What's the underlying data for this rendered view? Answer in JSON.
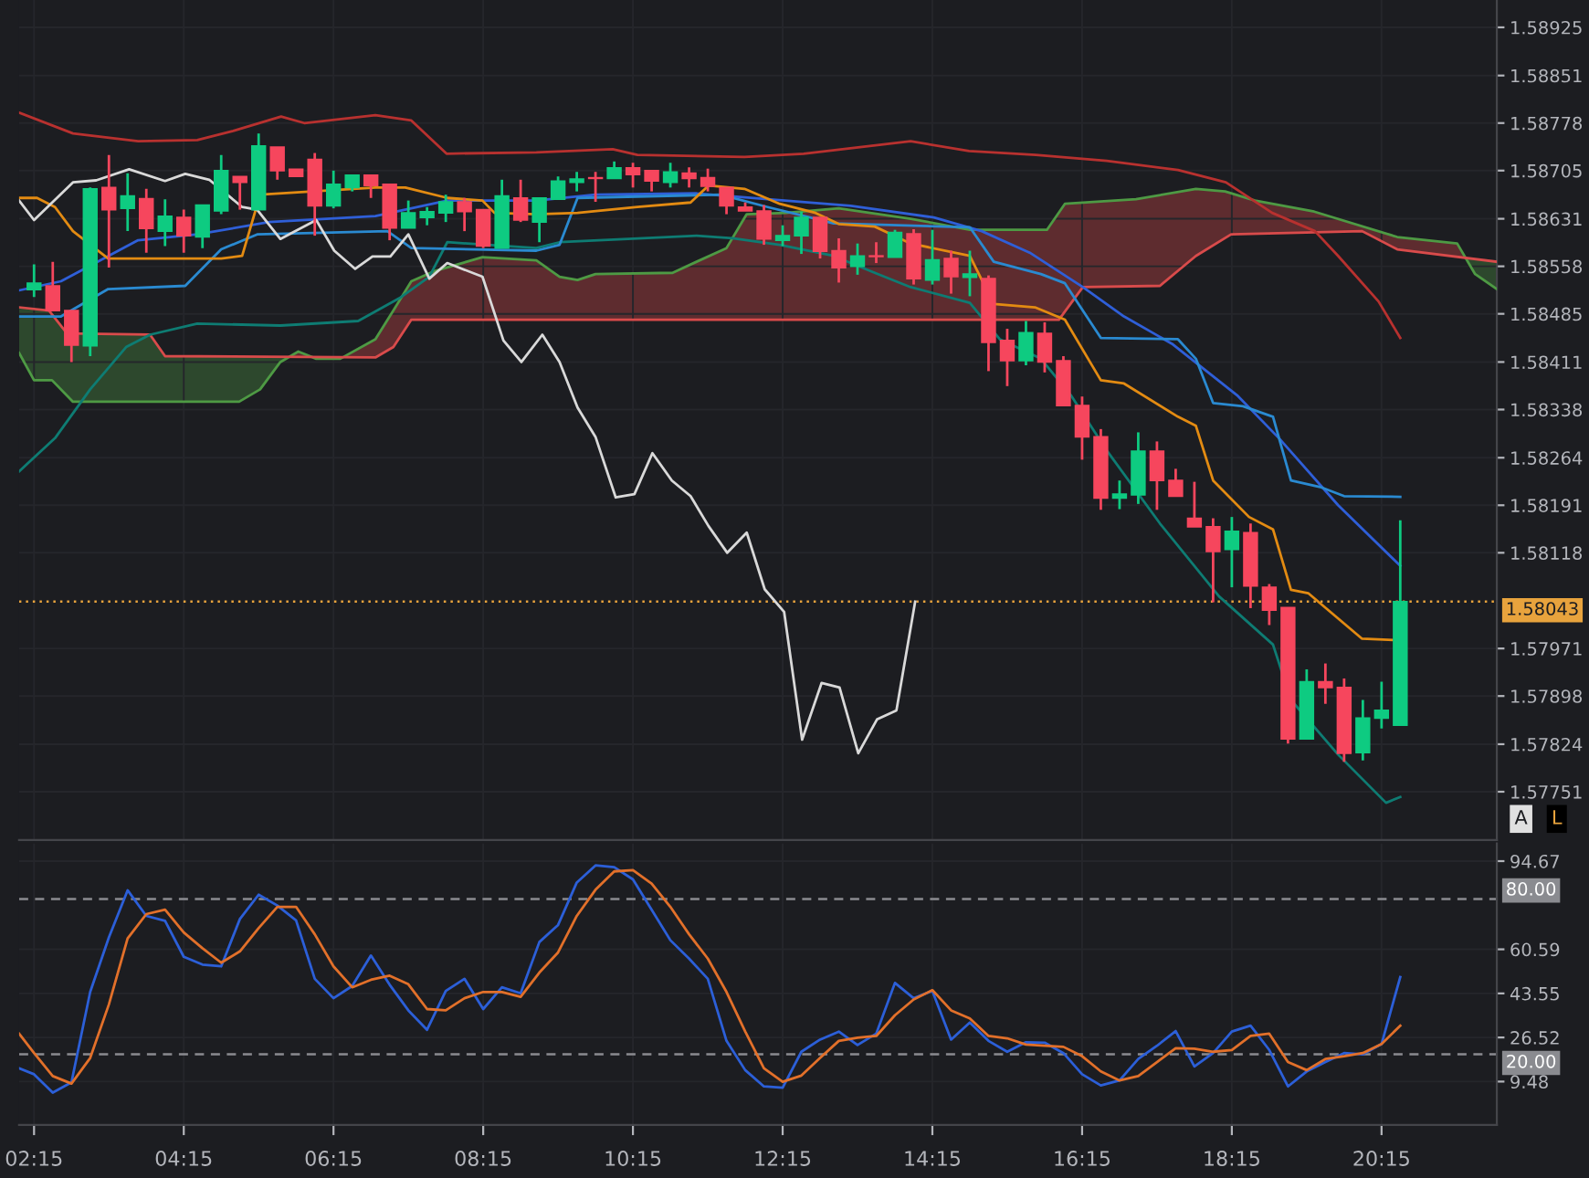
{
  "chart_data": [
    {
      "type": "candlestick",
      "x": [
        2.25,
        2.5,
        2.75,
        3.0,
        3.25,
        3.5,
        3.75,
        4.0,
        4.25,
        4.5,
        4.75,
        5.0,
        5.25,
        5.5,
        5.75,
        6.0,
        6.25,
        6.5,
        6.75,
        7.0,
        7.25,
        7.5,
        7.75,
        8.0,
        8.25,
        8.5,
        8.75,
        9.0,
        9.25,
        9.5,
        9.75,
        10.0,
        10.25,
        10.5,
        10.75,
        11.0,
        11.25,
        11.5,
        11.75,
        12.0,
        12.25,
        12.5,
        12.75,
        13.0,
        13.25,
        13.5,
        13.75,
        14.0,
        14.25,
        14.5,
        14.75,
        15.0,
        15.25,
        15.5,
        15.75,
        16.0,
        16.25,
        16.5,
        16.75,
        17.0,
        17.25,
        17.5,
        17.75,
        18.0,
        18.25,
        18.5,
        18.75,
        19.0,
        19.25,
        19.5,
        19.75,
        20.0,
        20.25,
        20.5
      ],
      "ohlc": [
        [
          1.58522,
          1.58561,
          1.58511,
          1.58532
        ],
        [
          1.58528,
          1.58565,
          1.5849,
          1.5849
        ],
        [
          1.5849,
          1.5849,
          1.58411,
          1.58437
        ],
        [
          1.58436,
          1.58679,
          1.5842,
          1.58677
        ],
        [
          1.58679,
          1.58729,
          1.58556,
          1.58645
        ],
        [
          1.58647,
          1.58701,
          1.58612,
          1.58666
        ],
        [
          1.58662,
          1.58677,
          1.58579,
          1.58616
        ],
        [
          1.58612,
          1.58661,
          1.58589,
          1.58635
        ],
        [
          1.58633,
          1.58645,
          1.58579,
          1.58605
        ],
        [
          1.58603,
          1.58652,
          1.58586,
          1.58652
        ],
        [
          1.58643,
          1.58729,
          1.58638,
          1.58705
        ],
        [
          1.58696,
          1.58696,
          1.58645,
          1.58687
        ],
        [
          1.58645,
          1.58762,
          1.58645,
          1.58743
        ],
        [
          1.58741,
          1.58741,
          1.58691,
          1.58705
        ],
        [
          1.58707,
          1.58707,
          1.58696,
          1.58696
        ],
        [
          1.58722,
          1.58732,
          1.58605,
          1.58651
        ],
        [
          1.58651,
          1.58705,
          1.58647,
          1.58684
        ],
        [
          1.58679,
          1.58698,
          1.58673,
          1.58698
        ],
        [
          1.58698,
          1.58698,
          1.58663,
          1.58682
        ],
        [
          1.58684,
          1.58684,
          1.58598,
          1.58617
        ],
        [
          1.58617,
          1.58659,
          1.58617,
          1.5864
        ],
        [
          1.58633,
          1.58649,
          1.58621,
          1.58642
        ],
        [
          1.5864,
          1.58668,
          1.58626,
          1.58657
        ],
        [
          1.58657,
          1.58663,
          1.58612,
          1.58642
        ],
        [
          1.58645,
          1.58645,
          1.58586,
          1.58589
        ],
        [
          1.58586,
          1.58691,
          1.58586,
          1.58666
        ],
        [
          1.58663,
          1.58691,
          1.58626,
          1.58629
        ],
        [
          1.58626,
          1.58663,
          1.58595,
          1.58663
        ],
        [
          1.58661,
          1.58696,
          1.58661,
          1.58689
        ],
        [
          1.58687,
          1.58703,
          1.58673,
          1.58692
        ],
        [
          1.58694,
          1.58703,
          1.58657,
          1.58693
        ],
        [
          1.58693,
          1.58719,
          1.58693,
          1.58709
        ],
        [
          1.58709,
          1.58717,
          1.58679,
          1.58699
        ],
        [
          1.58705,
          1.58705,
          1.58673,
          1.58689
        ],
        [
          1.58687,
          1.58717,
          1.58679,
          1.58703
        ],
        [
          1.58701,
          1.5871,
          1.58679,
          1.58693
        ],
        [
          1.58694,
          1.58708,
          1.58673,
          1.58681
        ],
        [
          1.58679,
          1.58679,
          1.58638,
          1.58651
        ],
        [
          1.58649,
          1.58656,
          1.58643,
          1.58643
        ],
        [
          1.58643,
          1.58652,
          1.58591,
          1.586
        ],
        [
          1.58598,
          1.58621,
          1.58589,
          1.58605
        ],
        [
          1.58605,
          1.58642,
          1.58577,
          1.58633
        ],
        [
          1.58633,
          1.58633,
          1.5857,
          1.58581
        ],
        [
          1.58582,
          1.58601,
          1.58533,
          1.58556
        ],
        [
          1.58558,
          1.58593,
          1.58545,
          1.58574
        ],
        [
          1.58574,
          1.58595,
          1.58563,
          1.58573
        ],
        [
          1.58572,
          1.58614,
          1.58572,
          1.5861
        ],
        [
          1.58608,
          1.58615,
          1.5853,
          1.58539
        ],
        [
          1.58537,
          1.58614,
          1.5853,
          1.58568
        ],
        [
          1.5857,
          1.58582,
          1.58516,
          1.58542
        ],
        [
          1.58541,
          1.58582,
          1.58512,
          1.58546
        ],
        [
          1.58539,
          1.58544,
          1.58397,
          1.58441
        ],
        [
          1.58444,
          1.58462,
          1.58374,
          1.58413
        ],
        [
          1.58413,
          1.58474,
          1.58406,
          1.58456
        ],
        [
          1.58455,
          1.58472,
          1.58395,
          1.58411
        ],
        [
          1.58413,
          1.5842,
          1.58344,
          1.58344
        ],
        [
          1.58344,
          1.58358,
          1.58261,
          1.58296
        ],
        [
          1.58296,
          1.58308,
          1.58184,
          1.58202
        ],
        [
          1.58202,
          1.58229,
          1.58185,
          1.58208
        ],
        [
          1.58207,
          1.58303,
          1.58193,
          1.58274
        ],
        [
          1.58274,
          1.58289,
          1.58184,
          1.58229
        ],
        [
          1.58229,
          1.58247,
          1.58205,
          1.58205
        ],
        [
          1.58171,
          1.58227,
          1.58158,
          1.58158
        ],
        [
          1.58158,
          1.58171,
          1.58042,
          1.5812
        ],
        [
          1.58123,
          1.58173,
          1.58065,
          1.58151
        ],
        [
          1.58149,
          1.58163,
          1.58033,
          1.58067
        ],
        [
          1.58065,
          1.5807,
          1.58007,
          1.5803
        ],
        [
          1.58034,
          1.58034,
          1.57825,
          1.57832
        ],
        [
          1.57832,
          1.57939,
          1.57832,
          1.5792
        ],
        [
          1.5792,
          1.57948,
          1.57886,
          1.57911
        ],
        [
          1.57911,
          1.57925,
          1.57797,
          1.5781
        ],
        [
          1.57811,
          1.57892,
          1.57799,
          1.57864
        ],
        [
          1.57864,
          1.5792,
          1.57848,
          1.57876
        ],
        [
          1.57853,
          1.58168,
          1.57853,
          1.58043
        ]
      ],
      "colors": [
        "#0ecb81",
        "#f6465d",
        "#f6465d",
        "#0ecb81",
        "#f6465d",
        "#0ecb81",
        "#f6465d",
        "#0ecb81",
        "#f6465d",
        "#0ecb81",
        "#0ecb81",
        "#f6465d",
        "#0ecb81",
        "#f6465d",
        "#f6465d",
        "#f6465d",
        "#0ecb81",
        "#0ecb81",
        "#f6465d",
        "#f6465d",
        "#0ecb81",
        "#0ecb81",
        "#0ecb81",
        "#f6465d",
        "#f6465d",
        "#0ecb81",
        "#f6465d",
        "#0ecb81",
        "#0ecb81",
        "#0ecb81",
        "#f6465d",
        "#0ecb81",
        "#f6465d",
        "#f6465d",
        "#0ecb81",
        "#f6465d",
        "#f6465d",
        "#f6465d",
        "#f6465d",
        "#f6465d",
        "#0ecb81",
        "#0ecb81",
        "#f6465d",
        "#f6465d",
        "#0ecb81",
        "#f6465d",
        "#0ecb81",
        "#f6465d",
        "#0ecb81",
        "#f6465d",
        "#0ecb81",
        "#f6465d",
        "#f6465d",
        "#0ecb81",
        "#f6465d",
        "#f6465d",
        "#f6465d",
        "#f6465d",
        "#0ecb81",
        "#0ecb81",
        "#f6465d",
        "#f6465d",
        "#f6465d",
        "#f6465d",
        "#0ecb81",
        "#f6465d",
        "#f6465d",
        "#f6465d",
        "#0ecb81",
        "#f6465d",
        "#f6465d",
        "#0ecb81",
        "#0ecb81",
        "#0ecb81"
      ],
      "series": [
        {
          "type": "line",
          "color": "#4e9a44",
          "x": [
            2.05,
            2.25,
            2.49,
            2.77,
            4.99,
            5.27,
            5.54,
            5.78,
            6.02,
            6.34,
            6.81,
            7.05,
            7.29,
            7.61,
            8.24,
            8.96,
            9.27,
            9.51,
            9.75,
            10.78,
            11.1,
            11.5,
            11.77,
            12.29,
            13.0,
            13.96,
            14.75,
            15.78,
            16.02,
            16.97,
            17.77,
            18.16,
            18.56,
            19.35,
            20.46,
            21.26,
            21.5,
            21.79
          ],
          "values": [
            1.58425,
            1.58383,
            1.58383,
            1.5835,
            1.5835,
            1.58369,
            1.58411,
            1.58427,
            1.58416,
            1.58416,
            1.58446,
            1.5849,
            1.58535,
            1.58551,
            1.58572,
            1.58567,
            1.58542,
            1.58537,
            1.58546,
            1.58548,
            1.58565,
            1.58586,
            1.58638,
            1.5864,
            1.58647,
            1.58631,
            1.58614,
            1.58614,
            1.58654,
            1.58661,
            1.58677,
            1.58673,
            1.58659,
            1.58642,
            1.58603,
            1.58593,
            1.58546,
            1.58523
          ]
        },
        {
          "type": "line",
          "color": "#d94b4b",
          "x": [
            2.05,
            2.45,
            2.69,
            3.8,
            4.0,
            6.81,
            7.05,
            7.29,
            15.94,
            16.26,
            17.29,
            17.77,
            18.24,
            19.99,
            20.46,
            21.79
          ],
          "values": [
            1.58495,
            1.5849,
            1.58455,
            1.58453,
            1.5842,
            1.58418,
            1.58434,
            1.58476,
            1.58476,
            1.58526,
            1.58528,
            1.58574,
            1.58607,
            1.58612,
            1.58584,
            1.58565
          ]
        },
        {
          "type": "line",
          "color": "#b8312f",
          "x": [
            2.05,
            2.77,
            3.64,
            4.43,
            4.91,
            5.55,
            5.86,
            6.81,
            7.29,
            7.76,
            8.96,
            9.98,
            10.31,
            11.74,
            12.53,
            13.96,
            14.74,
            15.63,
            16.58,
            17.53,
            18.17,
            18.79,
            19.36,
            19.67,
            20.21,
            20.5
          ],
          "values": [
            1.58794,
            1.58762,
            1.5875,
            1.58752,
            1.58766,
            1.58788,
            1.58778,
            1.5879,
            1.58782,
            1.58731,
            1.58733,
            1.58738,
            1.58729,
            1.58726,
            1.58731,
            1.5875,
            1.58735,
            1.58729,
            1.5872,
            1.58706,
            1.58687,
            1.5864,
            1.58612,
            1.58574,
            1.58504,
            1.58448
          ]
        },
        {
          "type": "line",
          "color": "#0e7c73",
          "x": [
            2.05,
            2.53,
            3.0,
            3.48,
            3.8,
            4.43,
            5.54,
            6.58,
            7.13,
            7.53,
            7.77,
            8.96,
            9.27,
            11.1,
            11.58,
            12.21,
            12.93,
            13.48,
            13.96,
            14.75,
            15.15,
            15.7,
            16.1,
            16.58,
            17.29,
            18.08,
            18.8,
            19.04,
            19.67,
            20.31,
            20.5
          ],
          "values": [
            1.58243,
            1.58294,
            1.58369,
            1.58434,
            1.58453,
            1.5847,
            1.58467,
            1.58474,
            1.58509,
            1.58542,
            1.58595,
            1.58586,
            1.58595,
            1.58605,
            1.58601,
            1.58591,
            1.58574,
            1.58548,
            1.58526,
            1.58502,
            1.58446,
            1.58416,
            1.5836,
            1.58275,
            1.58163,
            1.58051,
            1.57977,
            1.57892,
            1.57808,
            1.57734,
            1.57743
          ]
        },
        {
          "type": "line",
          "color": "#2f5fd8",
          "x": [
            2.05,
            2.61,
            3.64,
            4.43,
            5.39,
            6.81,
            7.77,
            8.96,
            9.75,
            11.1,
            12.05,
            13.16,
            14.27,
            14.91,
            15.55,
            16.26,
            16.81,
            17.45,
            18.32,
            18.88,
            19.67,
            20.5
          ],
          "values": [
            1.58521,
            1.58535,
            1.58598,
            1.58607,
            1.58626,
            1.58635,
            1.58659,
            1.58659,
            1.58668,
            1.5867,
            1.58661,
            1.58651,
            1.58633,
            1.58612,
            1.58579,
            1.58526,
            1.58481,
            1.58439,
            1.5836,
            1.58294,
            1.58191,
            1.58098
          ]
        },
        {
          "type": "line",
          "color": "#2a8ad1",
          "x": [
            2.05,
            2.61,
            3.24,
            4.27,
            4.75,
            5.23,
            6.97,
            7.29,
            8.96,
            9.27,
            9.51,
            11.42,
            12.05,
            12.69,
            12.93,
            14.75,
            15.07,
            15.7,
            16.02,
            16.5,
            17.53,
            17.77,
            18.0,
            18.4,
            18.8,
            19.04,
            19.43,
            19.75,
            20.5
          ],
          "values": [
            1.58481,
            1.58481,
            1.58523,
            1.58528,
            1.58584,
            1.58607,
            1.58612,
            1.58586,
            1.58582,
            1.58591,
            1.58663,
            1.58668,
            1.58649,
            1.58631,
            1.58624,
            1.58618,
            1.58565,
            1.58546,
            1.58532,
            1.58448,
            1.58446,
            1.58416,
            1.58348,
            1.58343,
            1.58327,
            1.58229,
            1.58219,
            1.58205,
            1.58204
          ]
        },
        {
          "type": "line",
          "color": "#e38b12",
          "x": [
            2.05,
            2.29,
            2.53,
            2.77,
            3.24,
            4.75,
            5.03,
            5.27,
            6.81,
            7.21,
            7.77,
            8.24,
            8.4,
            8.96,
            9.51,
            10.31,
            11.02,
            11.26,
            11.74,
            12.21,
            12.69,
            13.0,
            13.48,
            13.96,
            14.75,
            15.07,
            15.62,
            16.02,
            16.5,
            16.81,
            17.53,
            17.77,
            18.0,
            18.48,
            18.8,
            19.04,
            19.27,
            19.99,
            20.39
          ],
          "values": [
            1.58663,
            1.58663,
            1.58649,
            1.58612,
            1.5857,
            1.5857,
            1.58574,
            1.58668,
            1.58679,
            1.58679,
            1.58663,
            1.58659,
            1.5864,
            1.58638,
            1.5864,
            1.58649,
            1.58656,
            1.58682,
            1.58677,
            1.58654,
            1.5864,
            1.58623,
            1.58619,
            1.58593,
            1.58574,
            1.585,
            1.58495,
            1.58476,
            1.58383,
            1.58378,
            1.58327,
            1.58313,
            1.58229,
            1.58173,
            1.58154,
            1.58061,
            1.58056,
            1.57986,
            1.57984
          ]
        },
        {
          "type": "line",
          "color": "#d9d9d9",
          "x": [
            2.05,
            2.25,
            2.77,
            3.08,
            3.52,
            4.0,
            4.27,
            4.59,
            5.03,
            5.23,
            5.54,
            6.02,
            6.26,
            6.54,
            6.77,
            7.01,
            7.25,
            7.53,
            7.77,
            8.24,
            8.52,
            8.76,
            9.04,
            9.27,
            9.51,
            9.75,
            10.02,
            10.27,
            10.51,
            10.77,
            11.02,
            11.26,
            11.51,
            11.77,
            12.01,
            12.27,
            12.51,
            12.77,
            13.01,
            13.26,
            13.51,
            13.77,
            14.02
          ],
          "values": [
            1.58659,
            1.58629,
            1.58687,
            1.5869,
            1.58707,
            1.58689,
            1.587,
            1.58691,
            1.58649,
            1.58645,
            1.586,
            1.58629,
            1.58582,
            1.58554,
            1.58573,
            1.58573,
            1.58607,
            1.58539,
            1.58563,
            1.58542,
            1.58444,
            1.58411,
            1.58453,
            1.58411,
            1.58341,
            1.58296,
            1.58203,
            1.58208,
            1.58271,
            1.58229,
            1.58205,
            1.58159,
            1.58118,
            1.58149,
            1.58062,
            1.58027,
            1.57831,
            1.57918,
            1.57911,
            1.5781,
            1.57862,
            1.57876,
            1.58043
          ]
        }
      ],
      "ref_lines": [
        {
          "axis": "y",
          "value": 1.58043,
          "label": "1.58043",
          "color": "#e8a33d",
          "line_style": "dotted"
        }
      ],
      "annotations": [
        "A",
        "L"
      ],
      "xlim": [
        2.05,
        21.79
      ],
      "xticks": [
        {
          "value": 2.25,
          "label": null
        },
        {
          "value": 4.25,
          "label": null
        },
        {
          "value": 6.25,
          "label": null
        },
        {
          "value": 8.25,
          "label": null
        },
        {
          "value": 10.25,
          "label": null
        },
        {
          "value": 12.25,
          "label": null
        },
        {
          "value": 14.25,
          "label": null
        },
        {
          "value": 16.25,
          "label": null
        },
        {
          "value": 18.25,
          "label": null
        },
        {
          "value": 20.25,
          "label": null
        }
      ],
      "ylim": [
        1.57677,
        1.58967
      ],
      "yticks": [
        1.57751,
        1.57824,
        1.57898,
        1.57971,
        1.58118,
        1.58191,
        1.58264,
        1.58338,
        1.58411,
        1.58485,
        1.58558,
        1.58631,
        1.58705,
        1.58778,
        1.58851,
        1.58925
      ],
      "tick_labels": "y",
      "grid": true
    },
    {
      "type": "line",
      "x": [
        2.05,
        2.25,
        2.5,
        2.75,
        3.0,
        3.25,
        3.5,
        3.75,
        4.0,
        4.25,
        4.5,
        4.75,
        5.0,
        5.25,
        5.5,
        5.75,
        6.0,
        6.25,
        6.5,
        6.75,
        7.0,
        7.25,
        7.5,
        7.75,
        8.0,
        8.25,
        8.5,
        8.75,
        9.0,
        9.25,
        9.5,
        9.75,
        10.0,
        10.25,
        10.5,
        10.75,
        11.0,
        11.25,
        11.5,
        11.75,
        12.0,
        12.25,
        12.5,
        12.75,
        13.0,
        13.25,
        13.5,
        13.75,
        14.0,
        14.25,
        14.5,
        14.75,
        15.0,
        15.25,
        15.5,
        15.75,
        16.0,
        16.25,
        16.5,
        16.75,
        17.0,
        17.25,
        17.5,
        17.75,
        18.0,
        18.25,
        18.5,
        18.75,
        19.0,
        19.25,
        19.5,
        19.75,
        20.0,
        20.25,
        20.5
      ],
      "series": [
        {
          "color": "#2c5fd8",
          "values": [
            14.6,
            12.3,
            5.2,
            9.2,
            44.1,
            65.2,
            83.4,
            73.5,
            71.6,
            57.7,
            54.7,
            54.0,
            72.3,
            81.7,
            77.5,
            71.8,
            49.2,
            41.7,
            46.4,
            58.2,
            46.9,
            37.0,
            29.5,
            44.5,
            49.2,
            37.5,
            45.9,
            43.6,
            63.4,
            70.0,
            86.4,
            93.0,
            92.3,
            87.6,
            75.9,
            64.1,
            57.0,
            49.2,
            25.2,
            13.9,
            7.6,
            7.1,
            21.0,
            25.7,
            28.8,
            23.6,
            28.0,
            47.6,
            41.7,
            44.5,
            25.7,
            32.3,
            25.2,
            21.0,
            24.7,
            24.5,
            20.5,
            12.3,
            8.0,
            9.9,
            18.2,
            23.3,
            29.0,
            15.3,
            20.5,
            28.8,
            31.1,
            21.7,
            7.6,
            13.4,
            17.0,
            20.5,
            20.0,
            24.0,
            49.9
          ]
        },
        {
          "color": "#e2702a",
          "values": [
            28.0,
            20.5,
            11.6,
            8.7,
            18.6,
            39.3,
            64.8,
            74.2,
            75.9,
            67.1,
            61.0,
            55.4,
            59.8,
            68.8,
            77.0,
            77.0,
            66.4,
            54.0,
            45.9,
            48.8,
            50.4,
            47.1,
            37.5,
            37.0,
            41.7,
            44.1,
            44.1,
            42.2,
            51.6,
            59.4,
            73.5,
            83.6,
            90.7,
            91.2,
            86.0,
            77.0,
            66.4,
            57.0,
            44.1,
            28.8,
            14.6,
            9.4,
            11.8,
            18.6,
            25.2,
            26.4,
            27.1,
            35.1,
            41.2,
            44.8,
            37.0,
            33.9,
            27.1,
            26.2,
            23.8,
            23.3,
            22.9,
            19.3,
            13.4,
            9.9,
            11.6,
            17.0,
            22.4,
            22.2,
            21.0,
            21.7,
            27.1,
            28.0,
            17.0,
            13.9,
            18.2,
            19.3,
            20.5,
            24.0,
            31.1
          ]
        }
      ],
      "ref_lines": [
        {
          "axis": "y",
          "value": 80,
          "label": "80.00",
          "color": "#8a8b90",
          "line_style": "dashed"
        },
        {
          "axis": "y",
          "value": 20,
          "label": "20.00",
          "color": "#8a8b90",
          "line_style": "dashed"
        }
      ],
      "xlim": [
        2.05,
        21.79
      ],
      "xticks": [
        {
          "value": 2.25,
          "label": "02:15"
        },
        {
          "value": 4.25,
          "label": "04:15"
        },
        {
          "value": 6.25,
          "label": "06:15"
        },
        {
          "value": 8.25,
          "label": "08:15"
        },
        {
          "value": 10.25,
          "label": "10:15"
        },
        {
          "value": 12.25,
          "label": "12:15"
        },
        {
          "value": 14.25,
          "label": "14:15"
        },
        {
          "value": 16.25,
          "label": "16:15"
        },
        {
          "value": 18.25,
          "label": "18:15"
        },
        {
          "value": 20.25,
          "label": "20:15"
        }
      ],
      "ylim": [
        -7.3,
        101.5
      ],
      "yticks": [
        9.48,
        26.52,
        43.55,
        60.59,
        94.67
      ],
      "grid": true
    }
  ]
}
